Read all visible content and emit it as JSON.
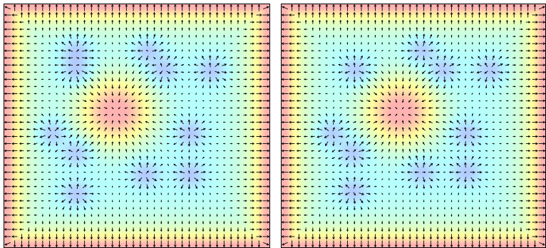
{
  "panels": [
    {
      "id": "left",
      "grid": {
        "cols": 38,
        "rows": 34
      },
      "low": [
        [
          0.27,
          0.19
        ],
        [
          0.54,
          0.19
        ],
        [
          0.6,
          0.27
        ],
        [
          0.78,
          0.27
        ],
        [
          0.27,
          0.27
        ],
        [
          0.18,
          0.53
        ],
        [
          0.7,
          0.53
        ],
        [
          0.27,
          0.61
        ],
        [
          0.53,
          0.7
        ],
        [
          0.7,
          0.7
        ],
        [
          0.27,
          0.78
        ]
      ],
      "high": [
        [
          0.42,
          0.44
        ]
      ],
      "edge_high": true
    },
    {
      "id": "right",
      "grid": {
        "cols": 38,
        "rows": 34
      },
      "low": [
        [
          0.53,
          0.19
        ],
        [
          0.61,
          0.27
        ],
        [
          0.79,
          0.27
        ],
        [
          0.28,
          0.27
        ],
        [
          0.19,
          0.53
        ],
        [
          0.7,
          0.53
        ],
        [
          0.27,
          0.61
        ],
        [
          0.53,
          0.69
        ],
        [
          0.7,
          0.69
        ],
        [
          0.27,
          0.77
        ]
      ],
      "high": [
        [
          0.45,
          0.44
        ]
      ],
      "edge_high": true
    }
  ],
  "colors": {
    "arrow": "#000000",
    "low": "#b2b2ff",
    "mid": "#b4ffff",
    "warm": "#ffff9e",
    "hot": "#ffb2b2"
  }
}
